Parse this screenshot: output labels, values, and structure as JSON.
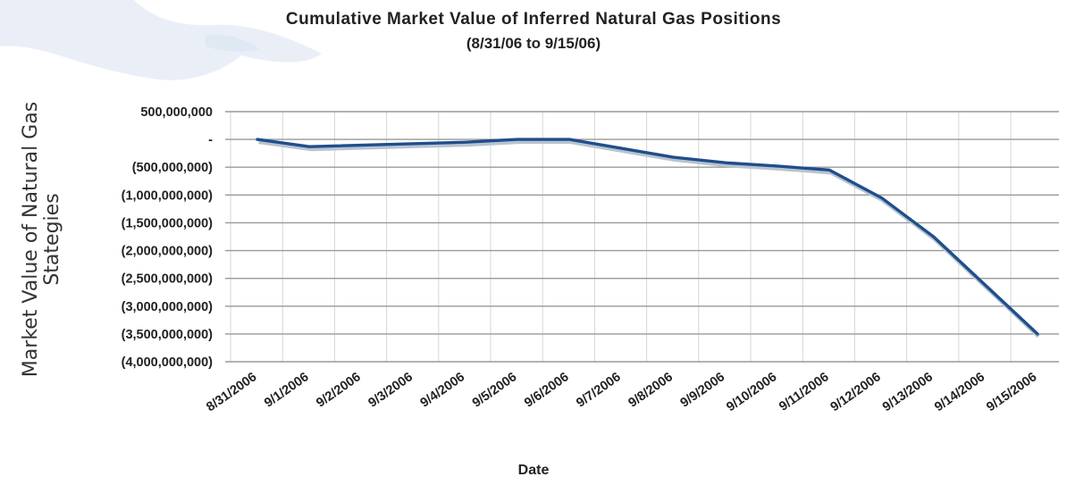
{
  "chart_data": {
    "type": "line",
    "title": "Cumulative Market Value of Inferred Natural  Gas Positions",
    "subtitle": "(8/31/06 to 9/15/06)",
    "xlabel": "Date",
    "ylabel": "Market Value of Natural Gas Stategies",
    "categories": [
      "8/31/2006",
      "9/1/2006",
      "9/2/2006",
      "9/3/2006",
      "9/4/2006",
      "9/5/2006",
      "9/6/2006",
      "9/7/2006",
      "9/8/2006",
      "9/9/2006",
      "9/10/2006",
      "9/11/2006",
      "9/12/2006",
      "9/13/2006",
      "9/14/2006",
      "9/15/2006"
    ],
    "y_tick_labels": [
      "500,000,000",
      "-",
      "(500,000,000)",
      "(1,000,000,000)",
      "(1,500,000,000)",
      "(2,000,000,000)",
      "(2,500,000,000)",
      "(3,000,000,000)",
      "(3,500,000,000)",
      "(4,000,000,000)"
    ],
    "y_tick_values": [
      500000000,
      0,
      -500000000,
      -1000000000,
      -1500000000,
      -2000000000,
      -2500000000,
      -3000000000,
      -3500000000,
      -4000000000
    ],
    "ylim": [
      -4000000000,
      500000000
    ],
    "series": [
      {
        "color": "#1f4e8c",
        "points": [
          {
            "x": "8/31/2006",
            "y": 0
          },
          {
            "x": "9/1/2006",
            "y": -130000000
          },
          {
            "x": "9/4/2006",
            "y": -50000000
          },
          {
            "x": "9/5/2006",
            "y": 0
          },
          {
            "x": "9/6/2006",
            "y": 0
          },
          {
            "x": "9/8/2006",
            "y": -320000000
          },
          {
            "x": "9/9/2006",
            "y": -420000000
          },
          {
            "x": "9/10/2006",
            "y": -480000000
          },
          {
            "x": "9/11/2006",
            "y": -550000000
          },
          {
            "x": "9/12/2006",
            "y": -1050000000
          },
          {
            "x": "9/13/2006",
            "y": -1750000000
          },
          {
            "x": "9/15/2006",
            "y": -3500000000
          }
        ]
      }
    ],
    "grid": true,
    "legend": "none"
  }
}
